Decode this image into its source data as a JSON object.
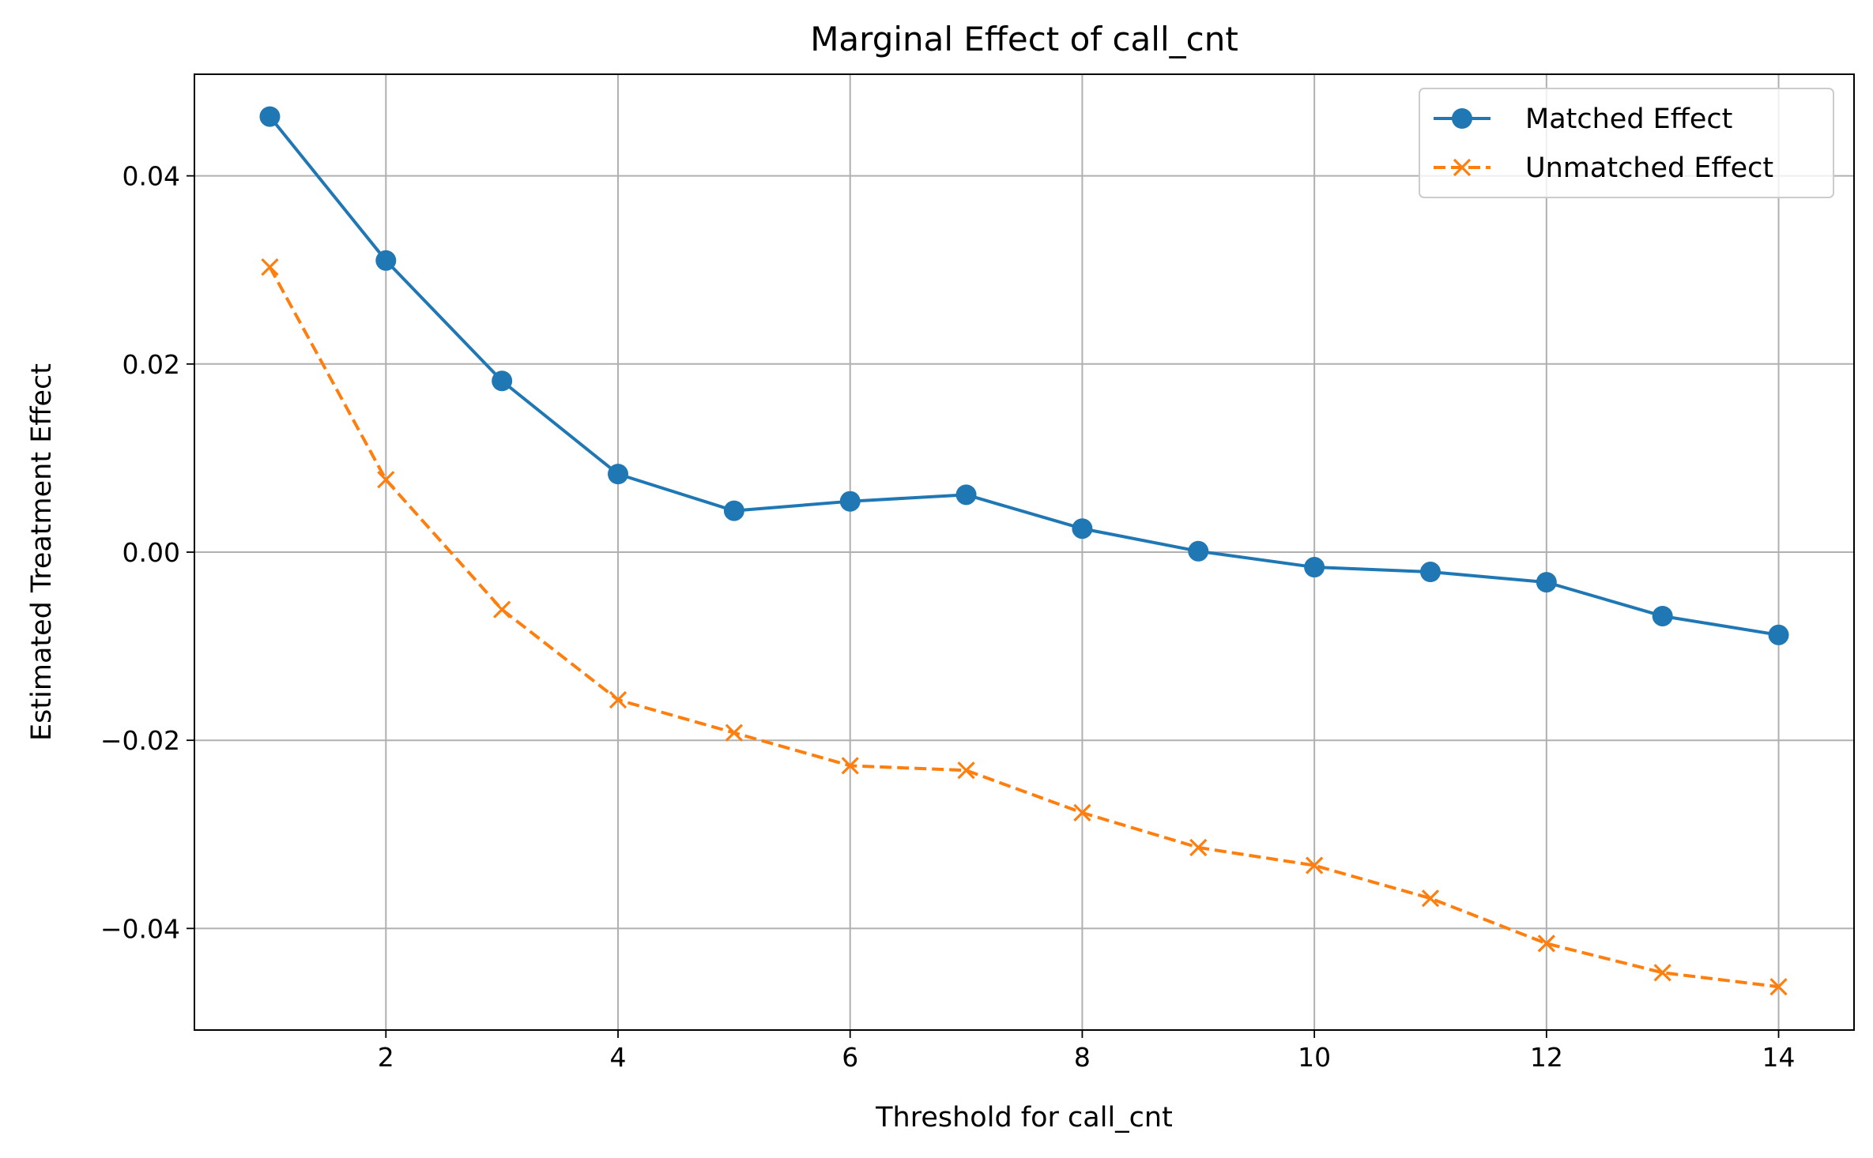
{
  "chart_data": {
    "type": "line",
    "title": "Marginal Effect of call_cnt",
    "xlabel": "Threshold for call_cnt",
    "ylabel": "Estimated Treatment Effect",
    "x": [
      1,
      2,
      3,
      4,
      5,
      6,
      7,
      8,
      9,
      10,
      11,
      12,
      13,
      14
    ],
    "xlim": [
      0.35,
      14.65
    ],
    "ylim": [
      -0.0508,
      0.0508
    ],
    "xticks": [
      2,
      4,
      6,
      8,
      10,
      12,
      14
    ],
    "xtick_labels": [
      "2",
      "4",
      "6",
      "8",
      "10",
      "12",
      "14"
    ],
    "yticks": [
      -0.04,
      -0.02,
      0.0,
      0.02,
      0.04
    ],
    "ytick_labels": [
      "−0.04",
      "−0.02",
      "0.00",
      "0.02",
      "0.04"
    ],
    "grid": true,
    "legend_position": "upper right",
    "series": [
      {
        "name": "Matched Effect",
        "color": "#1f77b4",
        "line_style": "solid",
        "marker": "circle",
        "values": [
          0.0463,
          0.031,
          0.0182,
          0.0083,
          0.0044,
          0.0054,
          0.0061,
          0.0025,
          0.0001,
          -0.0016,
          -0.0021,
          -0.0032,
          -0.0068,
          -0.0088
        ]
      },
      {
        "name": "Unmatched Effect",
        "color": "#ff7f0e",
        "line_style": "dashed",
        "marker": "x",
        "values": [
          0.0303,
          0.0077,
          -0.0061,
          -0.0157,
          -0.0192,
          -0.0227,
          -0.0232,
          -0.0277,
          -0.0314,
          -0.0333,
          -0.0368,
          -0.0416,
          -0.0447,
          -0.0462
        ]
      }
    ]
  }
}
